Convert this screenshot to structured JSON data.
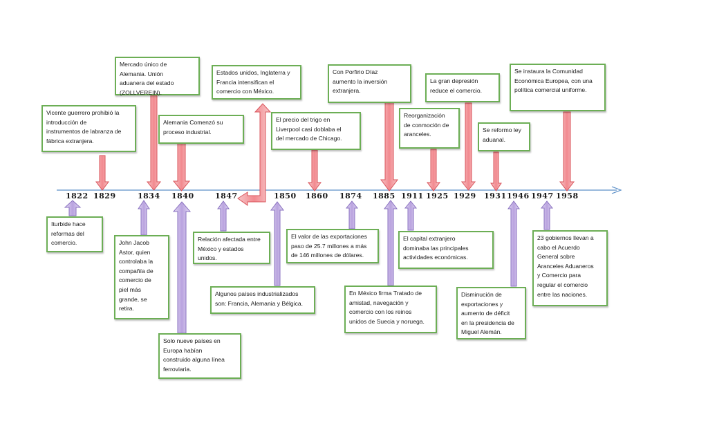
{
  "timeline": {
    "years": [
      "1822",
      "1829",
      "1834",
      "1840",
      "1847",
      "1850",
      "1860",
      "1874",
      "1885",
      "1911",
      "1925",
      "1929",
      "1931",
      "1946",
      "1947",
      "1958"
    ]
  },
  "events_above": [
    {
      "text": "Vicente guerrero prohibió la\nintroducción de\ninstrumentos de labranza  de\nfábrica extranjera."
    },
    {
      "text": "Mercado único de\nAlemania. Unión\naduanera del estado\n(ZOLLVEREIN)."
    },
    {
      "text": "Alemania Comenzó su\nproceso industrial."
    },
    {
      "text": "Estados unidos, Inglaterra y\nFrancia intensifican el\ncomercio con México."
    },
    {
      "text": "El precio del trigo en\nLiverpool casi doblaba el\ndel mercado de Chicago."
    },
    {
      "text": "Con Porfirio Díaz\naumento la inversión\nextranjera."
    },
    {
      "text": "Reorganización\nde conmoción de\naranceles."
    },
    {
      "text": "La gran depresión\nreduce el comercio."
    },
    {
      "text": "Se reformo ley\naduanal."
    },
    {
      "text": "Se instaura la Comunidad\nEconómica Europea, con una\npolítica comercial uniforme."
    }
  ],
  "events_below": [
    {
      "text": "Iturbide hace\nreformas del\ncomercio."
    },
    {
      "text": "John Jacob\nAstor, quien\ncontrolaba la\ncompañía de\ncomercio de\npiel más\ngrande, se\nretira."
    },
    {
      "text": "Solo nueve países en\nEuropa  habían\nconstruido alguna línea\nferroviaria."
    },
    {
      "text": "Relación afectada entre\nMéxico y estados\nunidos."
    },
    {
      "text": "Algunos países industrializados\nson: Francia, Alemania y Bélgica."
    },
    {
      "text": "El valor de las exportaciones\npaso de 25.7 millones a más\nde 146 millones de dólares."
    },
    {
      "text": "En México  firma Tratado de\namistad, navegación y\ncomercio con los reinos\nunidos de Suecia y noruega."
    },
    {
      "text": "El capital extranjero\ndominaba las principales\nactividades económicas."
    },
    {
      "text": "Disminución de\nexportaciones y\naumento de déficit\nen la presidencia de\nMiguel Alemán."
    },
    {
      "text": "23 gobiernos llevan a\ncabo el Acuerdo\nGeneral sobre\nAranceles Aduaneros\ny Comercio para\nregular el comercio\nentre las naciones."
    }
  ],
  "colors": {
    "timeline_line": "#5b8fc7",
    "box_border": "#6cae55",
    "arrow_down_fill": "#f4a3a6",
    "arrow_down_stroke": "#d9545b",
    "arrow_up_fill": "#c9b8e6",
    "arrow_up_stroke": "#8a72c0"
  }
}
